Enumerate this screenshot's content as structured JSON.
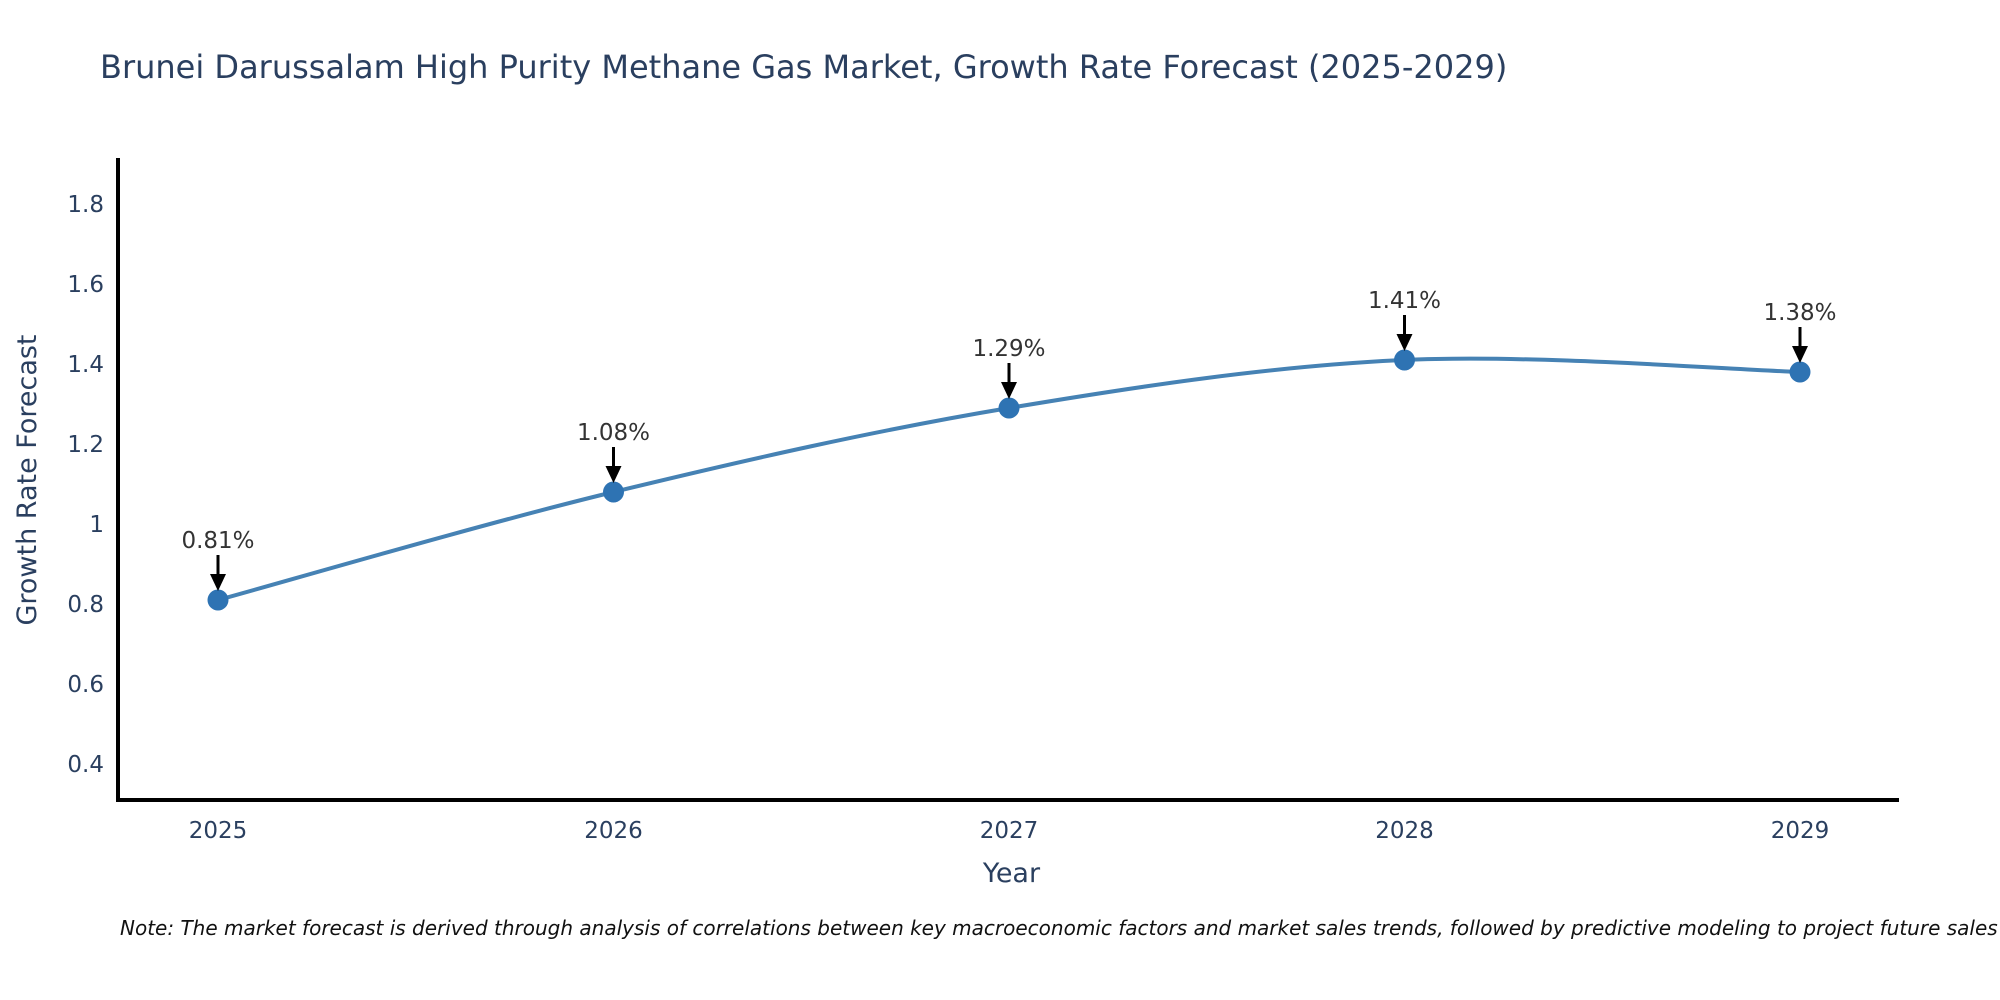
{
  "chart_data": {
    "type": "line",
    "title": "Brunei Darussalam High Purity Methane Gas Market, Growth Rate Forecast (2025-2029)",
    "xlabel": "Year",
    "ylabel": "Growth Rate Forecast",
    "x": [
      2025,
      2026,
      2027,
      2028,
      2029
    ],
    "xtick_labels": [
      "2025",
      "2026",
      "2027",
      "2028",
      "2029"
    ],
    "series": [
      {
        "name": "Growth Rate Forecast",
        "values": [
          0.81,
          1.08,
          1.29,
          1.41,
          1.38
        ]
      }
    ],
    "point_labels": [
      "0.81%",
      "1.08%",
      "1.29%",
      "1.41%",
      "1.38%"
    ],
    "ylim": [
      0.31,
      1.91
    ],
    "yticks": [
      0.4,
      0.6,
      0.8,
      1,
      1.2,
      1.4,
      1.6,
      1.8
    ],
    "ytick_labels": [
      "0.4",
      "0.6",
      "0.8",
      "1",
      "1.2",
      "1.4",
      "1.6",
      "1.8"
    ],
    "grid": false,
    "legend": "none",
    "line_shape": "spline",
    "colors": {
      "line": "#4682b4",
      "marker": "#2e73b3",
      "axis": "#000000",
      "title_text": "#2a3f5f",
      "tick_text": "#2a3f5f",
      "annotation_text": "#333333",
      "arrow": "#000000"
    }
  },
  "note": {
    "text": "Note: The market forecast is derived through analysis of correlations between key macroeconomic factors and market sales trends, followed by predictive modeling to project future sales"
  }
}
